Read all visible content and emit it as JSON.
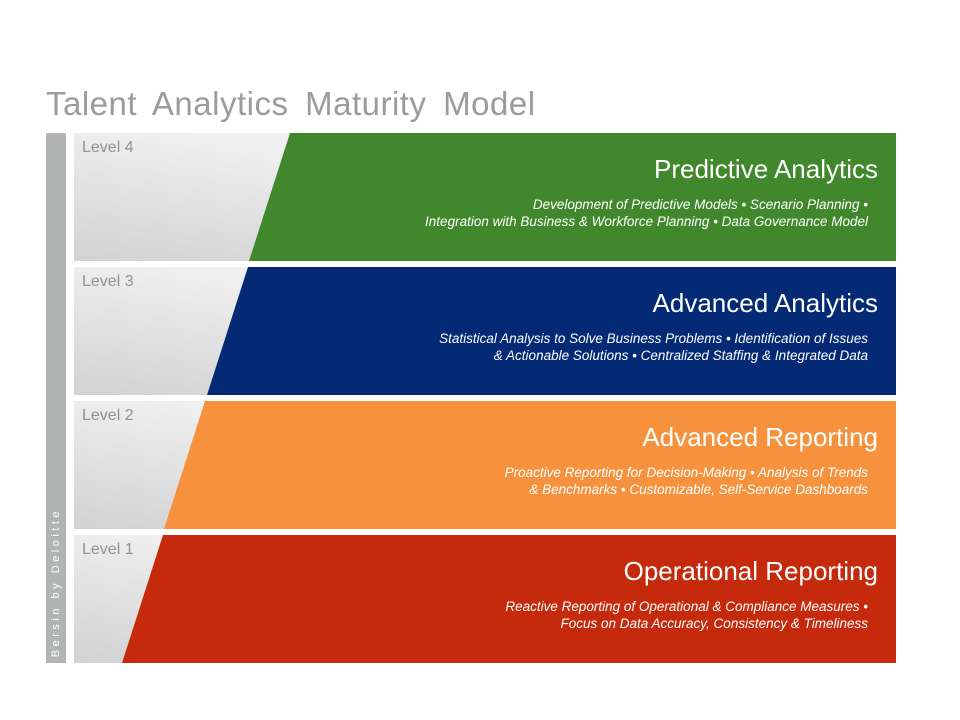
{
  "slide_title": "Talent Analytics Maturity Model",
  "brand": {
    "vertical_label": "Bersin by Deloitte"
  },
  "levels": [
    {
      "level_label": "Level 4",
      "title": "Predictive Analytics",
      "desc_line1": "Development of Predictive Models • Scenario Planning •",
      "desc_line2": "Integration with Business & Workforce Planning • Data Governance Model",
      "color": "#41882D"
    },
    {
      "level_label": "Level 3",
      "title": "Advanced Analytics",
      "desc_line1": "Statistical Analysis to Solve Business Problems • Identification of Issues",
      "desc_line2": "& Actionable Solutions • Centralized Staffing & Integrated Data",
      "color": "#042A76"
    },
    {
      "level_label": "Level 2",
      "title": "Advanced Reporting",
      "desc_line1": "Proactive Reporting for Decision-Making • Analysis of Trends",
      "desc_line2": "& Benchmarks • Customizable, Self-Service Dashboards",
      "color": "#F6923E"
    },
    {
      "level_label": "Level 1",
      "title": "Operational Reporting",
      "desc_line1": "Reactive Reporting of Operational & Compliance Measures •",
      "desc_line2": "Focus on Data Accuracy, Consistency & Timeliness",
      "color": "#C52A0D"
    }
  ],
  "colors": {
    "title_text": "#9B9B9B",
    "level_label_text": "#8F9394",
    "brand_bar": "#B2B4B3",
    "band_text": "#FFFFFF"
  }
}
